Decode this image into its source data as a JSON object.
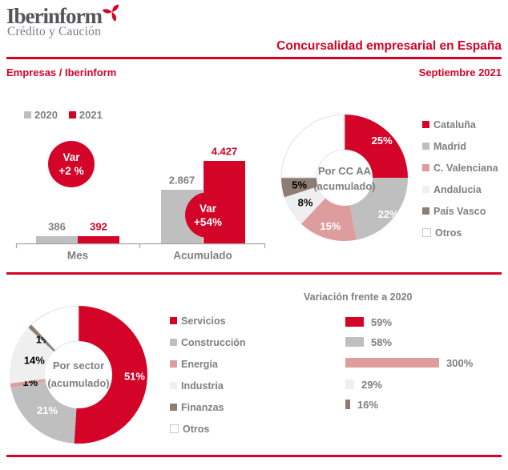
{
  "header": {
    "logo_title": "Iberinform",
    "logo_subtitle": "Crédito y Caución",
    "title": "Concursalidad empresarial en España",
    "breadcrumb": "Empresas / Iberinform",
    "date": "Septiembre 2021"
  },
  "colors": {
    "red": "#D40428",
    "gray": "#BFBFBF",
    "salmon": "#DD9D9C",
    "light_gray": "#EFEFEF",
    "brown": "#8E7D72",
    "white": "#FFFFFF",
    "text_gray": "#7F7F7F",
    "axis_gray": "#A6A6A6"
  },
  "chart_data": [
    {
      "id": "concursos-mes-acumulado",
      "type": "bar",
      "categories": [
        "Mes",
        "Acumulado"
      ],
      "series": [
        {
          "name": "2020",
          "color": "#BFBFBF",
          "label_color": "#7F7F7F",
          "values": [
            386,
            2867
          ],
          "labels": [
            "386",
            "2.867"
          ]
        },
        {
          "name": "2021",
          "color": "#D40428",
          "label_color": "#D40428",
          "values": [
            392,
            4427
          ],
          "labels": [
            "392",
            "4.427"
          ]
        }
      ],
      "legend": [
        {
          "label": "2020",
          "color": "#BFBFBF"
        },
        {
          "label": "2021",
          "color": "#D40428"
        }
      ],
      "badges": [
        {
          "line1": "Var",
          "line2": "+2 %"
        },
        {
          "line1": "Var",
          "line2": "+54%"
        }
      ],
      "ylim": [
        0,
        4427
      ]
    },
    {
      "id": "por-ccaa",
      "type": "pie",
      "center_lines": [
        "Por CC AA",
        "(acumulado)"
      ],
      "segments": [
        {
          "label": "Cataluña",
          "value": 25,
          "pct_label": "25%",
          "color": "#D40428",
          "label_color": "#FFFFFF"
        },
        {
          "label": "Madrid",
          "value": 22,
          "pct_label": "22%",
          "color": "#BFBFBF",
          "label_color": "#FFFFFF"
        },
        {
          "label": "C. Valenciana",
          "value": 15,
          "pct_label": "15%",
          "color": "#DD9D9C",
          "label_color": "#FFFFFF"
        },
        {
          "label": "Andalucia",
          "value": 8,
          "pct_label": "8%",
          "color": "#EFEFEF",
          "label_color": "#000000"
        },
        {
          "label": "País Vasco",
          "value": 5,
          "pct_label": "5%",
          "color": "#8E7D72",
          "label_color": "#000000"
        },
        {
          "label": "Otros",
          "value": 25,
          "pct_label": "",
          "color": "#FFFFFF",
          "label_color": "#000000"
        }
      ]
    },
    {
      "id": "por-sector",
      "type": "pie",
      "center_lines": [
        "Por sector",
        "(acumulado)"
      ],
      "segments": [
        {
          "label": "Servicios",
          "value": 51,
          "pct_label": "51%",
          "color": "#D40428",
          "label_color": "#FFFFFF"
        },
        {
          "label": "Construcción",
          "value": 21,
          "pct_label": "21%",
          "color": "#BFBFBF",
          "label_color": "#FFFFFF"
        },
        {
          "label": "Energía",
          "value": 1,
          "pct_label": "1%",
          "color": "#DD9D9C",
          "label_color": "#000000"
        },
        {
          "label": "Industria",
          "value": 14,
          "pct_label": "14%",
          "color": "#EFEFEF",
          "label_color": "#000000"
        },
        {
          "label": "Finanzas",
          "value": 1,
          "pct_label": "1%",
          "color": "#8E7D72",
          "label_color": "#000000"
        },
        {
          "label": "Otros",
          "value": 12,
          "pct_label": "",
          "color": "#FFFFFF",
          "label_color": "#000000"
        }
      ]
    },
    {
      "id": "variacion-2020",
      "type": "bar",
      "orientation": "horizontal",
      "title": "Variación frente a 2020",
      "categories": [
        "Servicios",
        "Construcción",
        "Energía",
        "Industria",
        "Finanzas"
      ],
      "values": [
        59,
        58,
        300,
        29,
        16
      ],
      "labels": [
        "59%",
        "58%",
        "300%",
        "29%",
        "16%"
      ],
      "colors": [
        "#D40428",
        "#BFBFBF",
        "#DD9D9C",
        "#EFEFEF",
        "#8E7D72"
      ],
      "xlim": [
        0,
        300
      ]
    }
  ]
}
